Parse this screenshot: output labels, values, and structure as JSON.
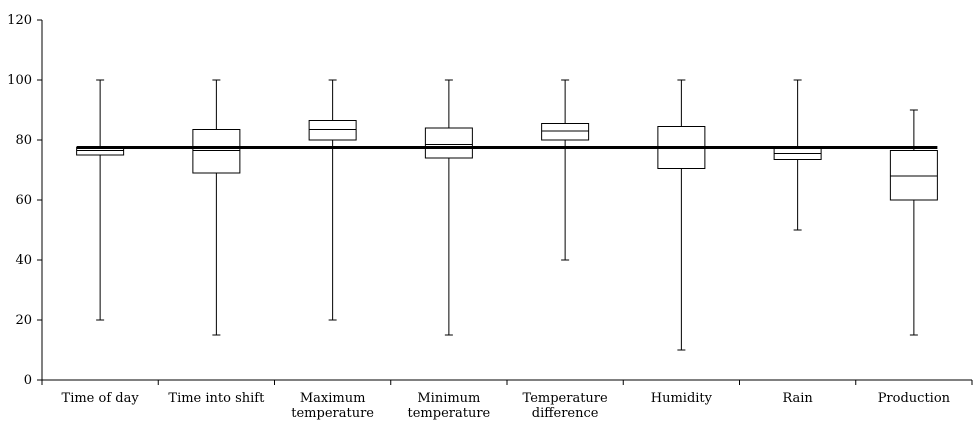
{
  "chart_data": {
    "type": "box",
    "title": "",
    "xlabel": "",
    "ylabel": "",
    "ylim": [
      0,
      120
    ],
    "yticks": [
      "0",
      "20",
      "40",
      "60",
      "80",
      "100",
      "120"
    ],
    "grid": false,
    "legend": "none",
    "reference_line": 77.5,
    "categories": [
      [
        "Time of day"
      ],
      [
        "Time into shift"
      ],
      [
        "Maximum",
        "temperature"
      ],
      [
        "Minimum",
        "temperature"
      ],
      [
        "Temperature",
        "difference"
      ],
      [
        "Humidity"
      ],
      [
        "Rain"
      ],
      [
        "Production"
      ]
    ],
    "boxes": [
      {
        "min": 20,
        "q1": 75,
        "median": 76.5,
        "q3": 77.5,
        "max": 100
      },
      {
        "min": 15,
        "q1": 69,
        "median": 76.5,
        "q3": 83.5,
        "max": 100
      },
      {
        "min": 20,
        "q1": 80,
        "median": 83.5,
        "q3": 86.5,
        "max": 100
      },
      {
        "min": 15,
        "q1": 74,
        "median": 78.5,
        "q3": 84,
        "max": 100
      },
      {
        "min": 40,
        "q1": 80,
        "median": 83,
        "q3": 85.5,
        "max": 100
      },
      {
        "min": 10,
        "q1": 70.5,
        "median": 77.5,
        "q3": 84.5,
        "max": 100
      },
      {
        "min": 50,
        "q1": 73.5,
        "median": 75.5,
        "q3": 77.5,
        "max": 100
      },
      {
        "min": 15,
        "q1": 60,
        "median": 68,
        "q3": 76.5,
        "max": 90
      }
    ],
    "colors": {
      "stroke": "#000000",
      "fill": "#ffffff",
      "reference": "#000000"
    }
  }
}
